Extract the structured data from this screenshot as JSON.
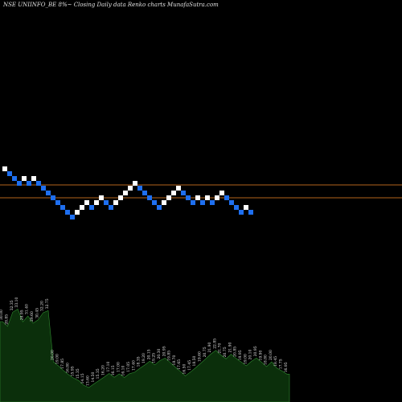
{
  "chart_data": {
    "type": "renko",
    "title": "NSE UNIINFO_BE 8%~   Closing Daily data  Renko  charts MunafaSutra.com",
    "brick_direction": [
      1,
      -1,
      -1,
      -1,
      1,
      -1,
      1,
      -1,
      -1,
      -1,
      -1,
      -1,
      -1,
      -1,
      -1,
      1,
      1,
      1,
      -1,
      1,
      1,
      -1,
      -1,
      1,
      1,
      1,
      1,
      1,
      -1,
      -1,
      -1,
      -1,
      -1,
      1,
      1,
      1,
      1,
      -1,
      -1,
      -1,
      1,
      -1,
      1,
      -1,
      1,
      1,
      -1,
      -1,
      -1,
      -1,
      1,
      -1
    ],
    "horizontal_lines": [
      "upper",
      "lower"
    ],
    "volume_labels": [
      "30.00",
      "28.85",
      "32.35",
      "33.10",
      "29.95",
      "31.40",
      "29.60",
      "30.45",
      "32.20",
      "32.75",
      "20.00",
      "19.00",
      "17.85",
      "16.80",
      "15.95",
      "15.35",
      "14.15",
      "13.60",
      "14.50",
      "15.35",
      "16.20",
      "17.10",
      "16.15",
      "17.00",
      "16.10",
      "17.05",
      "17.40",
      "18.35",
      "19.20",
      "20.15",
      "19.25",
      "20.30",
      "20.95",
      "19.85",
      "18.70",
      "17.65",
      "16.50",
      "17.45",
      "18.50",
      "19.60",
      "20.75",
      "21.90",
      "22.85",
      "21.70",
      "20.75",
      "21.90",
      "20.85",
      "19.95",
      "19.00",
      "20.10",
      "20.95",
      "19.90",
      "18.80",
      "20.00",
      "18.45",
      "17.75",
      "16.95"
    ],
    "colors": {
      "background": "#000000",
      "brick_up": "#ffffff",
      "brick_down": "#1e6ff0",
      "level_line": "#b5651d",
      "volume_fill": "#0b2f0b",
      "volume_line": "#2f8a2f"
    }
  }
}
